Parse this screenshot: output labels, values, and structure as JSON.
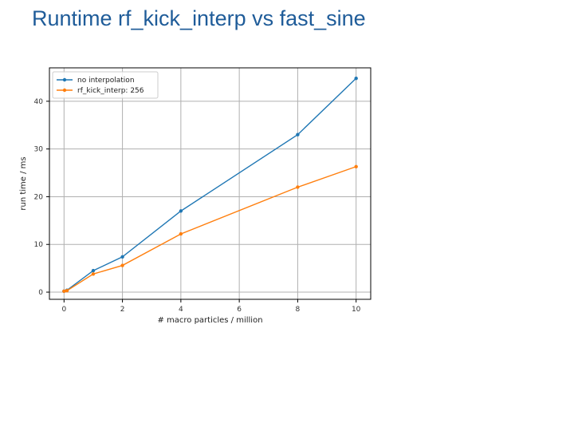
{
  "slide": {
    "title": "Runtime rf_kick_interp vs fast_sine"
  },
  "chart_data": {
    "type": "line",
    "title": "",
    "xlabel": "# macro particles / million",
    "ylabel": "run time / ms",
    "xlim": [
      -0.5,
      10.5
    ],
    "ylim": [
      -1.5,
      47
    ],
    "xticks": [
      0,
      2,
      4,
      6,
      8,
      10
    ],
    "yticks": [
      0,
      10,
      20,
      30,
      40
    ],
    "grid": true,
    "legend_position": "top-left",
    "series": [
      {
        "name": "no interpolation",
        "color": "#1f77b4",
        "x": [
          0,
          0.1,
          1,
          2,
          4,
          8,
          10
        ],
        "y": [
          0.2,
          0.4,
          4.5,
          7.4,
          17.0,
          33.0,
          44.8
        ]
      },
      {
        "name": "rf_kick_interp: 256",
        "color": "#ff7f0e",
        "x": [
          0,
          0.1,
          1,
          2,
          4,
          8,
          10
        ],
        "y": [
          0.2,
          0.3,
          3.8,
          5.6,
          12.2,
          22.0,
          26.3
        ]
      }
    ]
  }
}
